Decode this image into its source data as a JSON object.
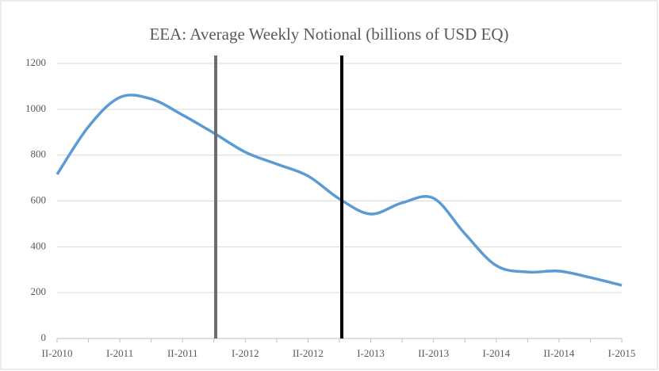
{
  "chart_data": {
    "type": "line",
    "title": "EEA: Average Weekly Notional (billions of USD EQ)",
    "categories": [
      "II-2010",
      null,
      "I-2011",
      null,
      "II-2011",
      null,
      "I-2012",
      null,
      "II-2012",
      null,
      "I-2013",
      null,
      "II-2013",
      null,
      "I-2014",
      null,
      "II-2014",
      null,
      "I-2015"
    ],
    "series": [
      {
        "name": "Average Weekly Notional",
        "color": "#5b9bd5",
        "values": [
          716,
          924,
          1052,
          1045,
          975,
          896,
          813,
          761,
          709,
          609,
          543,
          592,
          612,
          457,
          318,
          290,
          294,
          266,
          232
        ]
      }
    ],
    "ylim": [
      0,
      1200
    ],
    "yticks": [
      0,
      200,
      400,
      600,
      800,
      1000,
      1200
    ],
    "grid": true
  }
}
